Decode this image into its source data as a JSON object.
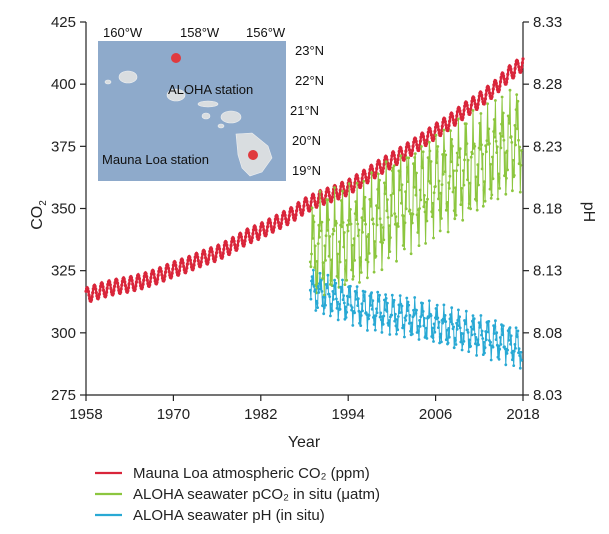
{
  "chart_data": {
    "type": "line",
    "xlabel": "Year",
    "ylabel_left": "CO",
    "ylabel_left_sub": "2",
    "ylabel_right": "pH",
    "x_ticks": [
      1958,
      1970,
      1982,
      1994,
      2006,
      2018
    ],
    "y_left_ticks": [
      275,
      300,
      325,
      350,
      375,
      400,
      425
    ],
    "y_right_ticks": [
      "8.03",
      "8.08",
      "8.13",
      "8.18",
      "8.23",
      "8.28",
      "8.33"
    ],
    "xlim": [
      1958,
      2018
    ],
    "ylim_left": [
      275,
      425
    ],
    "ylim_right": [
      8.03,
      8.33
    ],
    "grid": false,
    "legend_position": "bottom",
    "series": [
      {
        "name": "Mauna Loa atmospheric CO₂ (ppm)",
        "axis": "left",
        "color": "#d9253a",
        "x": [
          1958,
          1960,
          1962,
          1964,
          1966,
          1968,
          1970,
          1972,
          1974,
          1976,
          1978,
          1980,
          1982,
          1984,
          1986,
          1988,
          1990,
          1992,
          1994,
          1996,
          1998,
          2000,
          2002,
          2004,
          2006,
          2008,
          2010,
          2012,
          2014,
          2016,
          2018
        ],
        "values": [
          315,
          317,
          318.5,
          319.5,
          321,
          323,
          325.5,
          327.5,
          330,
          332,
          335,
          338.5,
          341,
          344,
          347,
          351,
          354,
          356,
          358.5,
          362,
          366,
          369.5,
          373,
          377,
          381,
          385,
          389.5,
          393.5,
          398,
          404,
          408.5
        ],
        "seasonal_amplitude": 3
      },
      {
        "name": "ALOHA seawater pCO₂ in situ (μatm)",
        "axis": "left",
        "color": "#8cc63f",
        "x": [
          1988.8,
          1990,
          1992,
          1994,
          1996,
          1998,
          2000,
          2002,
          2004,
          2006,
          2008,
          2010,
          2012,
          2014,
          2016,
          2017.8
        ],
        "values": [
          330,
          335,
          336,
          338,
          340,
          345,
          350,
          353,
          356,
          360,
          362,
          366,
          368,
          372,
          376,
          378
        ],
        "seasonal_amplitude": 14
      },
      {
        "name": "ALOHA seawater pH (in situ)",
        "axis": "right",
        "color": "#29a9d4",
        "x": [
          1988.8,
          1990,
          1992,
          1994,
          1996,
          1998,
          2000,
          2002,
          2004,
          2006,
          2008,
          2010,
          2012,
          2014,
          2016,
          2017.8
        ],
        "values": [
          8.115,
          8.112,
          8.108,
          8.105,
          8.1,
          8.098,
          8.095,
          8.093,
          8.09,
          8.087,
          8.084,
          8.081,
          8.078,
          8.075,
          8.071,
          8.068
        ],
        "seasonal_amplitude": 0.011
      }
    ]
  },
  "inset_map": {
    "lon_labels": [
      "160°W",
      "158°W",
      "156°W"
    ],
    "lat_labels": [
      "23°N",
      "22°N",
      "21°N",
      "20°N",
      "19°N"
    ],
    "aloha_label": "ALOHA station",
    "mauna_loa_label": "Mauna Loa station",
    "ocean_color": "#8eaacb",
    "marker_color": "#e03a3e"
  }
}
